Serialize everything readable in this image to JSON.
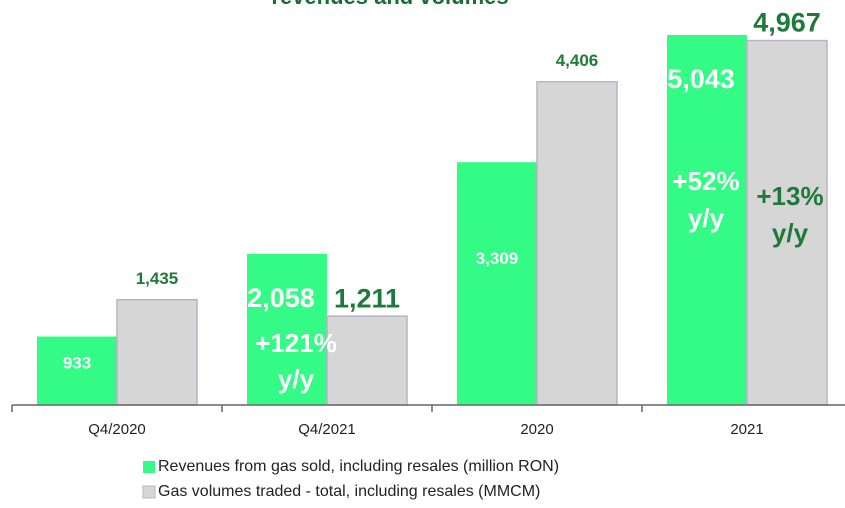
{
  "chart_data": {
    "type": "bar",
    "title": "revenues and volumes",
    "categories": [
      "Q4/2020",
      "Q4/2021",
      "2020",
      "2021"
    ],
    "series": [
      {
        "name": "Revenues from gas sold, including resales (million RON)",
        "color": "#33fb86",
        "values": [
          933,
          2058,
          3309,
          5043
        ],
        "value_labels": [
          "933",
          "2,058",
          "3,309",
          "5,043"
        ]
      },
      {
        "name": "Gas volumes traded - total, including resales (MMCM)",
        "color": "#d6d6d6",
        "values": [
          1435,
          1211,
          4406,
          4967
        ],
        "value_labels": [
          "1,435",
          "1,211",
          "4,406",
          "4,967"
        ]
      }
    ],
    "annotations": [
      [
        "+121%",
        "y/y"
      ],
      [
        "+52%",
        "y/y"
      ],
      [
        "+13%",
        "y/y"
      ]
    ]
  }
}
